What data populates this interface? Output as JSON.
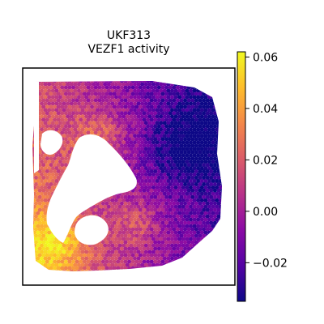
{
  "chart_data": {
    "type": "heatmap",
    "title": "UKF313",
    "subtitle": "VEZF1 activity",
    "xlabel": "",
    "ylabel": "",
    "colormap": "plasma",
    "colorbar": {
      "vmin": -0.035,
      "vmax": 0.062,
      "ticks": [
        -0.02,
        0.0,
        0.02,
        0.04,
        0.06
      ],
      "tick_labels": [
        "−0.02",
        "0.00",
        "0.02",
        "0.04",
        "0.06"
      ],
      "placement": "right"
    },
    "spatial_pattern": {
      "high_activity_regions": [
        "lower-left",
        "upper-left interior"
      ],
      "low_activity_regions": [
        "right side",
        "upper-right"
      ],
      "empty_regions": [
        "center-left interior"
      ]
    },
    "grid": false,
    "axes_visible": false
  },
  "colors": {
    "frame": "#000000",
    "background": "#ffffff",
    "plasma_stops": [
      "#0d0887",
      "#5302a3",
      "#8b0aa5",
      "#b83289",
      "#db5c68",
      "#f48849",
      "#febd2a",
      "#f0f921"
    ]
  }
}
